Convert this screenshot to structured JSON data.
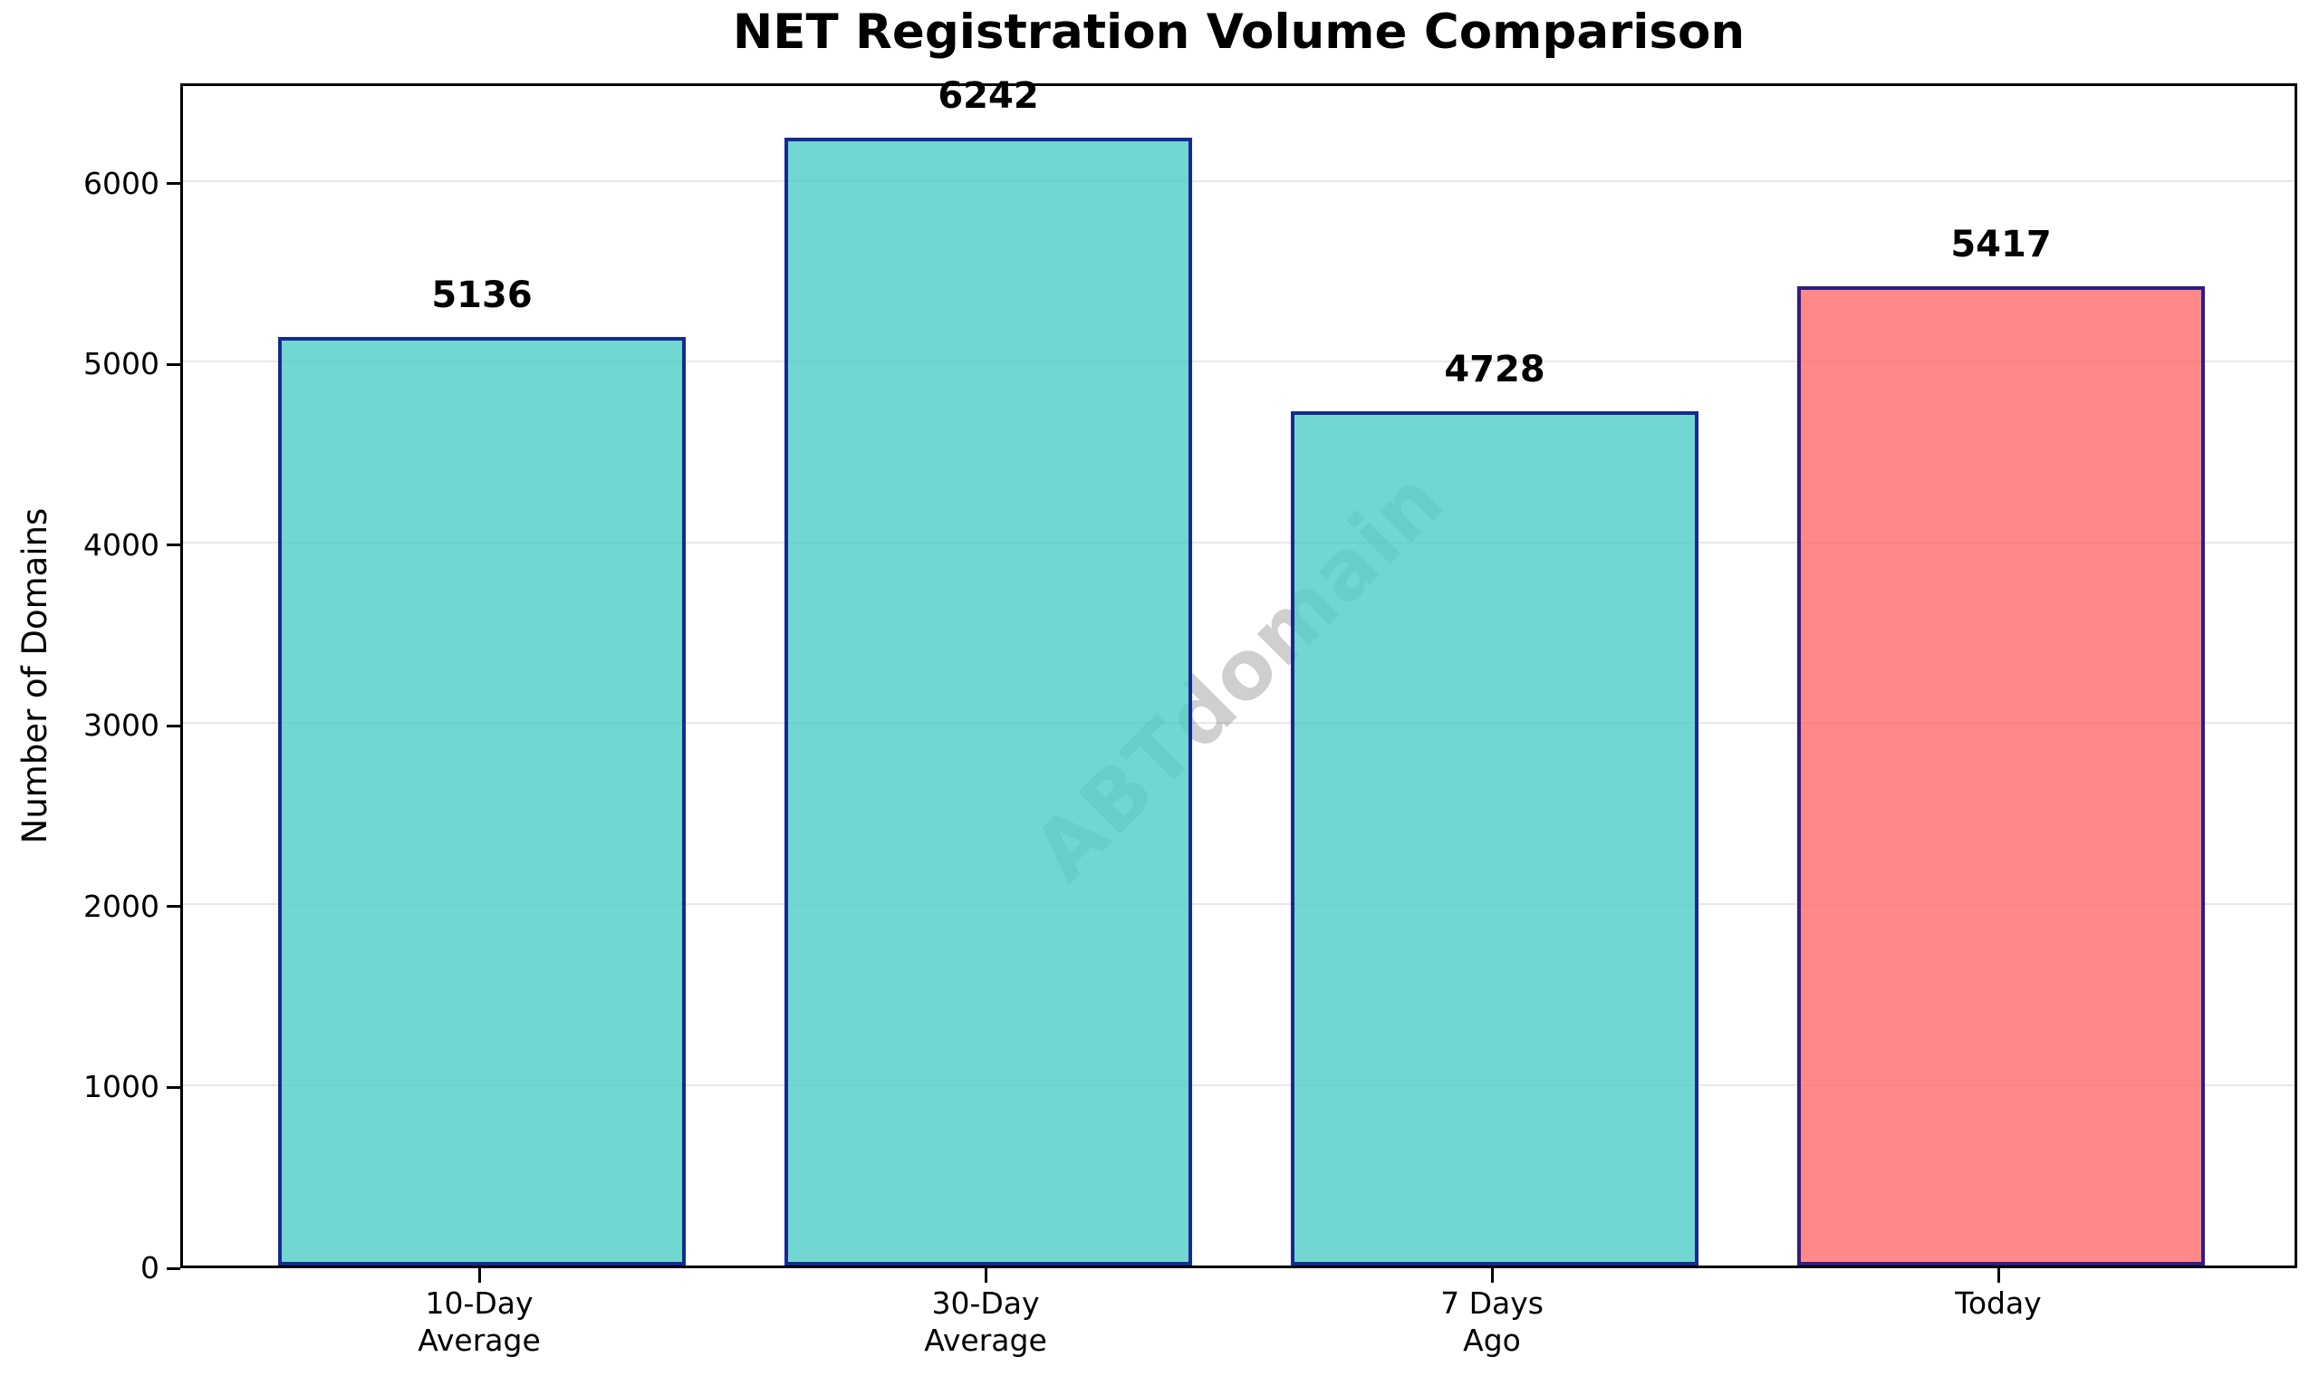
{
  "chart_data": {
    "type": "bar",
    "title": "NET Registration Volume Comparison",
    "xlabel": "",
    "ylabel": "Number of Domains",
    "categories": [
      "10-Day\nAverage",
      "30-Day\nAverage",
      "7 Days\nAgo",
      "Today"
    ],
    "values": [
      5136,
      6242,
      4728,
      5417
    ],
    "bar_value_labels": [
      "5136",
      "6242",
      "4728",
      "5417"
    ],
    "bar_fill_colors": [
      "#4ECDC4",
      "#4ECDC4",
      "#4ECDC4",
      "#FF6B6B"
    ],
    "bar_alpha": 0.8,
    "bar_edge_color": "#000080",
    "bar_edge_alpha": 0.8,
    "yticks": [
      0,
      1000,
      2000,
      3000,
      4000,
      5000,
      6000
    ],
    "ylim": [
      0,
      6556
    ],
    "grid": "horizontal",
    "grid_color": "#e7e7e7",
    "legend": "none",
    "watermark": {
      "text": "ABTdomain",
      "color": "#808080",
      "alpha": 0.38,
      "rotation_deg": -45
    },
    "value_label_color": "#000000",
    "axis_color": "#000000",
    "background_color": "#ffffff"
  }
}
